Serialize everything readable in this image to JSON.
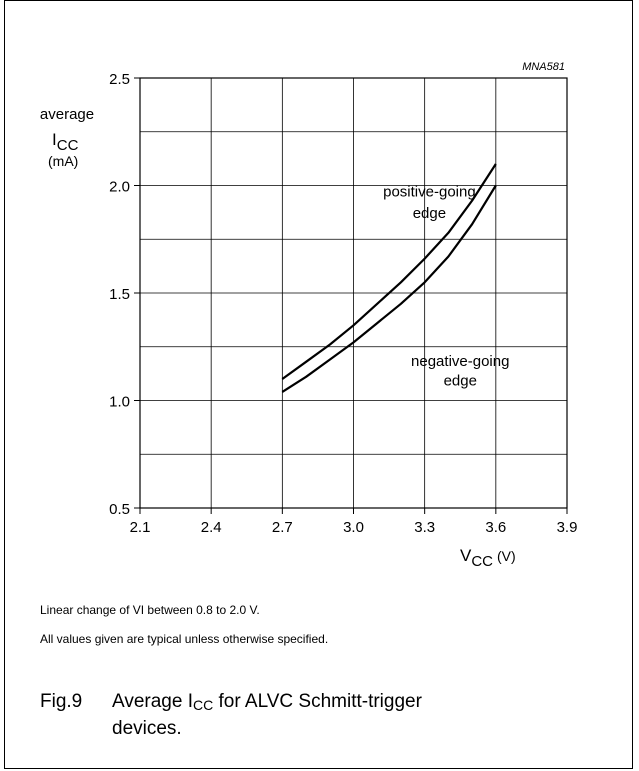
{
  "chart_data": {
    "type": "line",
    "code": "MNA581",
    "ylabel_line1": "average",
    "ylabel_main": "I",
    "ylabel_sub": "CC",
    "ylabel_unit": "(mA)",
    "xlabel_main": "V",
    "xlabel_sub": "CC",
    "xlabel_unit": "(V)",
    "xlim": [
      2.1,
      3.9
    ],
    "ylim": [
      0.5,
      2.5
    ],
    "x_ticks": [
      "2.1",
      "2.4",
      "2.7",
      "3.0",
      "3.3",
      "3.6",
      "3.9"
    ],
    "y_ticks": [
      "0.5",
      "1.0",
      "1.5",
      "2.0",
      "2.5"
    ],
    "grid": true,
    "series": [
      {
        "name": "positive-going edge",
        "label_line1": "positive-going",
        "label_line2": "edge",
        "x": [
          2.7,
          2.8,
          2.9,
          3.0,
          3.1,
          3.2,
          3.3,
          3.4,
          3.5,
          3.6
        ],
        "y": [
          1.1,
          1.18,
          1.26,
          1.35,
          1.45,
          1.55,
          1.66,
          1.78,
          1.93,
          2.1
        ]
      },
      {
        "name": "negative-going edge",
        "label_line1": "negative-going",
        "label_line2": "edge",
        "x": [
          2.7,
          2.8,
          2.9,
          3.0,
          3.1,
          3.2,
          3.3,
          3.4,
          3.5,
          3.6
        ],
        "y": [
          1.04,
          1.11,
          1.19,
          1.27,
          1.36,
          1.45,
          1.55,
          1.67,
          1.82,
          2.0
        ]
      }
    ]
  },
  "notes": [
    "Linear change of VI between 0.8 to 2.0 V.",
    "All values given are typical unless otherwise specified."
  ],
  "caption": {
    "fig": "Fig.9",
    "text_before": "Average I",
    "text_sub": "CC",
    "text_after": " for ALVC Schmitt-trigger",
    "line2": "devices."
  }
}
